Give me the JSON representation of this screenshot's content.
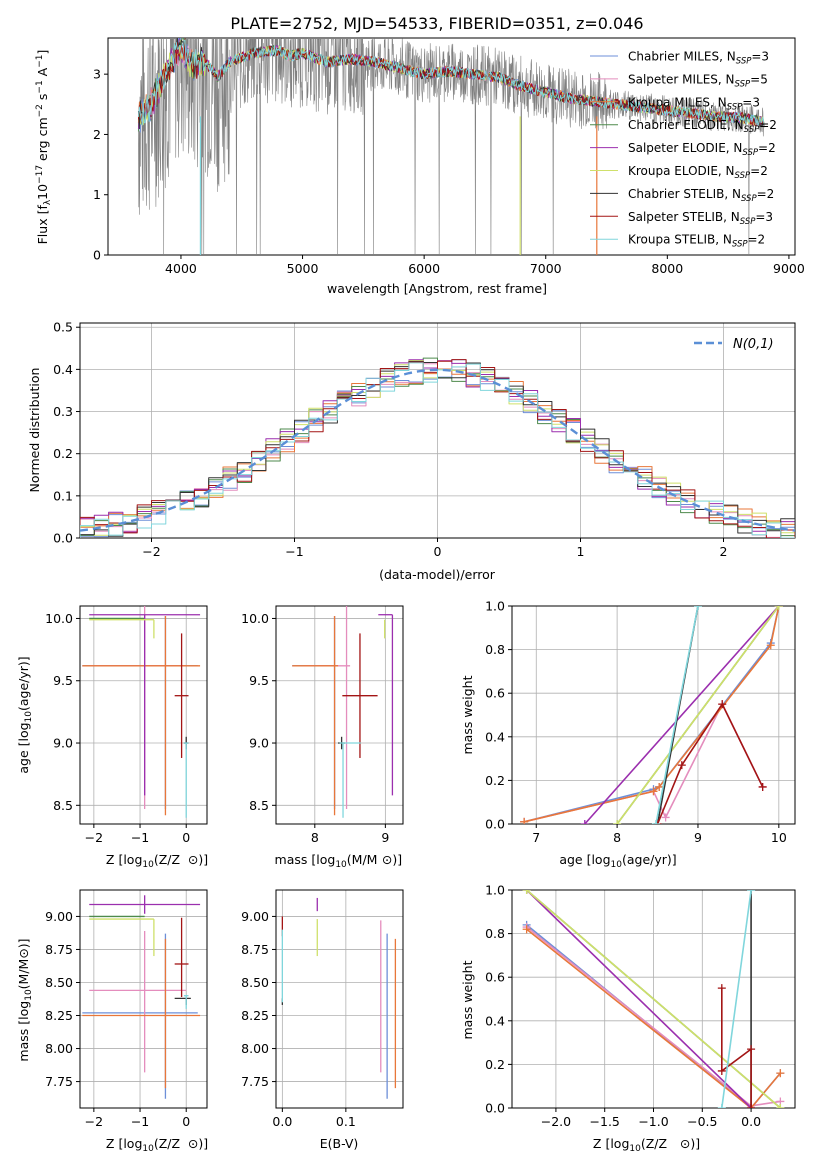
{
  "figure": {
    "title": "PLATE=2752, MJD=54533, FIBERID=0351, z=0.046"
  },
  "colors": {
    "chabrier_miles": "#6d8fd8",
    "salpeter_miles": "#e48dbd",
    "kroupa_miles": "#e8773a",
    "chabrier_elodie": "#4e8a4c",
    "salpeter_elodie": "#9b2fae",
    "kroupa_elodie": "#cfe06a",
    "chabrier_stelib": "#333333",
    "salpeter_stelib": "#a31515",
    "kroupa_stelib": "#80d6dc",
    "data": "#808080",
    "normal": "#5b8fd6"
  },
  "chart_data": [
    {
      "id": "spectrum",
      "type": "line",
      "xlabel": "wavelength [Angstrom, rest frame]",
      "ylabel": "Flux [f",
      "ylim": [
        0,
        3.6
      ],
      "xlim": [
        3400,
        9050
      ],
      "xticks": [
        4000,
        5000,
        6000,
        7000,
        8000,
        9000
      ],
      "yticks": [
        0,
        1,
        2,
        3
      ],
      "legend_placement": "right",
      "series": [
        {
          "name": "Chabrier MILES, N",
          "nssp": "=3",
          "key": "chabrier_miles"
        },
        {
          "name": "Salpeter MILES, N",
          "nssp": "=5",
          "key": "salpeter_miles"
        },
        {
          "name": "Kroupa MILES, N",
          "nssp": "=3",
          "key": "kroupa_miles"
        },
        {
          "name": "Chabrier ELODIE, N",
          "nssp": "=2",
          "key": "chabrier_elodie"
        },
        {
          "name": "Salpeter ELODIE, N",
          "nssp": "=2",
          "key": "salpeter_elodie"
        },
        {
          "name": "Kroupa ELODIE, N",
          "nssp": "=2",
          "key": "kroupa_elodie"
        },
        {
          "name": "Chabrier STELIB, N",
          "nssp": "=2",
          "key": "chabrier_stelib"
        },
        {
          "name": "Salpeter STELIB, N",
          "nssp": "=3",
          "key": "salpeter_stelib"
        },
        {
          "name": "Kroupa STELIB, N",
          "nssp": "=2",
          "key": "kroupa_stelib"
        }
      ],
      "model_continuum": [
        [
          3650,
          2.25
        ],
        [
          3750,
          2.5
        ],
        [
          3850,
          2.9
        ],
        [
          3950,
          3.3
        ],
        [
          4000,
          3.45
        ],
        [
          4100,
          3.15
        ],
        [
          4200,
          3.2
        ],
        [
          4300,
          2.95
        ],
        [
          4400,
          3.2
        ],
        [
          4600,
          3.35
        ],
        [
          4800,
          3.4
        ],
        [
          4900,
          3.3
        ],
        [
          5000,
          3.35
        ],
        [
          5200,
          3.2
        ],
        [
          5400,
          3.25
        ],
        [
          5600,
          3.2
        ],
        [
          5800,
          3.1
        ],
        [
          6000,
          3.0
        ],
        [
          6200,
          3.05
        ],
        [
          6400,
          3.0
        ],
        [
          6600,
          2.95
        ],
        [
          6800,
          2.8
        ],
        [
          7000,
          2.7
        ],
        [
          7200,
          2.6
        ],
        [
          7400,
          2.55
        ],
        [
          7600,
          2.5
        ],
        [
          7800,
          2.45
        ],
        [
          8000,
          2.4
        ],
        [
          8200,
          2.35
        ],
        [
          8400,
          2.3
        ],
        [
          8600,
          2.28
        ],
        [
          8800,
          2.2
        ]
      ]
    },
    {
      "id": "residuals",
      "type": "line",
      "xlabel": "(data-model)/error",
      "ylabel": "Normed distribution",
      "xlim": [
        -2.5,
        2.5
      ],
      "ylim": [
        0,
        0.51
      ],
      "xticks": [
        -2,
        -1,
        0,
        1,
        2
      ],
      "yticks": [
        0.0,
        0.1,
        0.2,
        0.3,
        0.4,
        0.5
      ],
      "legend": "N(0,1)",
      "legend_placement": "top-right",
      "bin_width": 0.1,
      "grid": true
    },
    {
      "id": "age_vs_Z",
      "type": "scatter",
      "xlabel": "Z [log",
      "ylabel": "age  [log",
      "xlim": [
        -2.3,
        0.45
      ],
      "ylim": [
        8.35,
        10.1
      ],
      "xticks": [
        -2,
        -1,
        0
      ],
      "yticks": [
        8.5,
        9.0,
        9.5,
        10.0
      ],
      "points": [
        {
          "key": "chabrier_miles",
          "x": -0.45,
          "xerr": [
            1.8,
            0.7
          ],
          "y": 9.62,
          "yerr": [
            1.15,
            0.4
          ]
        },
        {
          "key": "salpeter_miles",
          "x": -0.9,
          "xerr": [
            1.2,
            0.9
          ],
          "y": 9.62,
          "yerr": [
            1.15,
            0.5
          ]
        },
        {
          "key": "kroupa_miles",
          "x": -0.45,
          "xerr": [
            1.8,
            0.75
          ],
          "y": 9.62,
          "yerr": [
            1.2,
            0.4
          ]
        },
        {
          "key": "chabrier_elodie",
          "x": -0.9,
          "xerr": [
            1.2,
            0.0
          ],
          "y": 10.0,
          "yerr": [
            0.0,
            0.0
          ]
        },
        {
          "key": "salpeter_elodie",
          "x": -0.9,
          "xerr": [
            1.2,
            1.2
          ],
          "y": 10.03,
          "yerr": [
            1.45,
            0.0
          ]
        },
        {
          "key": "kroupa_elodie",
          "x": -0.7,
          "xerr": [
            1.4,
            0.0
          ],
          "y": 9.99,
          "yerr": [
            0.15,
            0.0
          ]
        },
        {
          "key": "chabrier_stelib",
          "x": 0.0,
          "xerr": [
            0.05,
            0.05
          ],
          "y": 9.0,
          "yerr": [
            0.05,
            0.05
          ]
        },
        {
          "key": "salpeter_stelib",
          "x": -0.1,
          "xerr": [
            0.15,
            0.15
          ],
          "y": 9.38,
          "yerr": [
            0.5,
            0.5
          ]
        },
        {
          "key": "kroupa_stelib",
          "x": 0.0,
          "xerr": [
            0.05,
            0.05
          ],
          "y": 9.0,
          "yerr": [
            0.6,
            0.0
          ]
        }
      ]
    },
    {
      "id": "age_vs_mass",
      "type": "scatter",
      "xlabel": "mass [log",
      "ylabel": "",
      "xlim": [
        7.45,
        9.25
      ],
      "ylim": [
        8.35,
        10.1
      ],
      "xticks": [
        8,
        9
      ],
      "yticks": [
        8.5,
        9.0,
        9.5,
        10.0
      ],
      "points": [
        {
          "key": "chabrier_miles",
          "x": 8.28,
          "xerr": [
            0.6,
            0.05
          ],
          "y": 9.62,
          "yerr": [
            1.15,
            0.4
          ]
        },
        {
          "key": "salpeter_miles",
          "x": 8.45,
          "xerr": [
            0.6,
            0.05
          ],
          "y": 9.62,
          "yerr": [
            1.15,
            0.5
          ]
        },
        {
          "key": "kroupa_miles",
          "x": 8.28,
          "xerr": [
            0.6,
            0.05
          ],
          "y": 9.62,
          "yerr": [
            1.2,
            0.4
          ]
        },
        {
          "key": "chabrier_elodie",
          "x": 9.0,
          "xerr": [
            0.0,
            0.0
          ],
          "y": 10.0,
          "yerr": [
            0.0,
            0.0
          ]
        },
        {
          "key": "salpeter_elodie",
          "x": 9.1,
          "xerr": [
            0.2,
            0.0
          ],
          "y": 10.03,
          "yerr": [
            1.45,
            0.0
          ]
        },
        {
          "key": "kroupa_elodie",
          "x": 8.99,
          "xerr": [
            0.0,
            0.0
          ],
          "y": 9.99,
          "yerr": [
            0.15,
            0.0
          ]
        },
        {
          "key": "chabrier_stelib",
          "x": 8.38,
          "xerr": [
            0.05,
            0.05
          ],
          "y": 9.0,
          "yerr": [
            0.05,
            0.05
          ]
        },
        {
          "key": "salpeter_stelib",
          "x": 8.64,
          "xerr": [
            0.25,
            0.25
          ],
          "y": 9.38,
          "yerr": [
            0.5,
            0.5
          ]
        },
        {
          "key": "kroupa_stelib",
          "x": 8.4,
          "xerr": [
            0.05,
            0.25
          ],
          "y": 9.0,
          "yerr": [
            0.6,
            0.0
          ]
        }
      ]
    },
    {
      "id": "massweight_vs_age",
      "type": "line",
      "xlabel": "age  [log",
      "ylabel": "mass weight",
      "xlim": [
        6.7,
        10.2
      ],
      "ylim": [
        0,
        1
      ],
      "xticks": [
        7,
        8,
        9,
        10
      ],
      "yticks": [
        0.0,
        0.2,
        0.4,
        0.6,
        0.8,
        1.0
      ],
      "series": [
        {
          "key": "chabrier_miles",
          "x": [
            6.85,
            8.45,
            8.52,
            9.9,
            10.0
          ],
          "y": [
            0.01,
            0.16,
            0.17,
            0.83,
            1.0
          ]
        },
        {
          "key": "salpeter_miles",
          "x": [
            6.85,
            8.45,
            8.6,
            9.3,
            9.8
          ],
          "y": [
            0.01,
            0.15,
            0.03,
            0.55,
            0.17
          ]
        },
        {
          "key": "kroupa_miles",
          "x": [
            6.85,
            8.45,
            8.52,
            9.9,
            10.0
          ],
          "y": [
            0.01,
            0.15,
            0.17,
            0.82,
            1.0
          ]
        },
        {
          "key": "chabrier_elodie",
          "x": [
            8.0,
            10.0
          ],
          "y": [
            0.0,
            1.0
          ]
        },
        {
          "key": "salpeter_elodie",
          "x": [
            7.6,
            10.0
          ],
          "y": [
            0.0,
            1.0
          ]
        },
        {
          "key": "kroupa_elodie",
          "x": [
            8.0,
            10.0
          ],
          "y": [
            0.0,
            1.0
          ]
        },
        {
          "key": "chabrier_stelib",
          "x": [
            8.5,
            9.0
          ],
          "y": [
            0.0,
            1.0
          ]
        },
        {
          "key": "salpeter_stelib",
          "x": [
            8.5,
            8.8,
            9.3,
            9.8
          ],
          "y": [
            0.0,
            0.27,
            0.55,
            0.17
          ]
        },
        {
          "key": "kroupa_stelib",
          "x": [
            8.48,
            9.0
          ],
          "y": [
            0.0,
            1.0
          ]
        }
      ]
    },
    {
      "id": "mass_vs_Z",
      "type": "scatter",
      "xlabel": "Z [log",
      "ylabel": "mass [log",
      "xlim": [
        -2.3,
        0.45
      ],
      "ylim": [
        7.55,
        9.2
      ],
      "xticks": [
        -2,
        -1,
        0
      ],
      "yticks": [
        7.75,
        8.0,
        8.25,
        8.5,
        8.75,
        9.0
      ],
      "points": [
        {
          "key": "chabrier_miles",
          "x": -0.45,
          "xerr": [
            1.8,
            0.7
          ],
          "y": 8.27,
          "yerr": [
            0.65,
            0.6
          ]
        },
        {
          "key": "salpeter_miles",
          "x": -0.9,
          "xerr": [
            1.2,
            0.9
          ],
          "y": 8.44,
          "yerr": [
            0.62,
            0.45
          ]
        },
        {
          "key": "kroupa_miles",
          "x": -0.45,
          "xerr": [
            1.8,
            0.75
          ],
          "y": 8.25,
          "yerr": [
            0.55,
            0.58
          ]
        },
        {
          "key": "chabrier_elodie",
          "x": -0.9,
          "xerr": [
            1.2,
            0.0
          ],
          "y": 9.0,
          "yerr": [
            0.0,
            0.0
          ]
        },
        {
          "key": "salpeter_elodie",
          "x": -0.9,
          "xerr": [
            1.2,
            1.2
          ],
          "y": 9.09,
          "yerr": [
            0.07,
            0.07
          ]
        },
        {
          "key": "kroupa_elodie",
          "x": -0.7,
          "xerr": [
            1.4,
            0.0
          ],
          "y": 8.98,
          "yerr": [
            0.28,
            0.0
          ]
        },
        {
          "key": "chabrier_stelib",
          "x": 0.0,
          "xerr": [
            0.25,
            0.1
          ],
          "y": 8.38,
          "yerr": [
            0.05,
            0.0
          ]
        },
        {
          "key": "salpeter_stelib",
          "x": -0.1,
          "xerr": [
            0.15,
            0.15
          ],
          "y": 8.64,
          "yerr": [
            0.25,
            0.35
          ]
        },
        {
          "key": "kroupa_stelib",
          "x": 0.0,
          "xerr": [
            0.05,
            0.05
          ],
          "y": 8.4,
          "yerr": [
            0.1,
            0.0
          ]
        }
      ]
    },
    {
      "id": "mass_vs_ebv",
      "type": "scatter",
      "xlabel": "E(B-V)",
      "ylabel": "",
      "xlim": [
        -0.01,
        0.19
      ],
      "ylim": [
        7.55,
        9.2
      ],
      "xticks": [
        0.0,
        0.1
      ],
      "yticks": [
        7.75,
        8.0,
        8.25,
        8.5,
        8.75,
        9.0
      ],
      "points": [
        {
          "key": "chabrier_miles",
          "x": 0.165,
          "y": 8.27,
          "yerr": [
            0.65,
            0.6
          ]
        },
        {
          "key": "salpeter_miles",
          "x": 0.155,
          "y": 8.44,
          "yerr": [
            0.62,
            0.53
          ]
        },
        {
          "key": "kroupa_miles",
          "x": 0.178,
          "y": 8.25,
          "yerr": [
            0.55,
            0.58
          ]
        },
        {
          "key": "chabrier_elodie",
          "x": 0.055,
          "y": 9.0,
          "yerr": [
            0.0,
            0.0
          ]
        },
        {
          "key": "salpeter_elodie",
          "x": 0.055,
          "y": 9.09,
          "yerr": [
            0.05,
            0.05
          ]
        },
        {
          "key": "kroupa_elodie",
          "x": 0.055,
          "y": 8.98,
          "yerr": [
            0.28,
            0.0
          ]
        },
        {
          "key": "chabrier_stelib",
          "x": 0.0,
          "y": 8.38,
          "yerr": [
            0.05,
            0.0
          ]
        },
        {
          "key": "salpeter_stelib",
          "x": 0.0,
          "y": 8.9,
          "yerr": [
            0.05,
            0.1
          ]
        },
        {
          "key": "kroupa_stelib",
          "x": 0.0,
          "y": 8.6,
          "yerr": [
            0.25,
            0.3
          ]
        }
      ]
    },
    {
      "id": "massweight_vs_Z",
      "type": "line",
      "xlabel": "Z [log",
      "ylabel": "mass weight",
      "xlim": [
        -2.45,
        0.45
      ],
      "ylim": [
        0,
        1
      ],
      "xticks": [
        -2.0,
        -1.5,
        -1.0,
        -0.5,
        0.0
      ],
      "yticks": [
        0.0,
        0.2,
        0.4,
        0.6,
        0.8,
        1.0
      ],
      "series": [
        {
          "key": "chabrier_miles",
          "x": [
            -2.3,
            0.0,
            0.3
          ],
          "y": [
            0.84,
            0.0,
            0.16
          ]
        },
        {
          "key": "salpeter_miles",
          "x": [
            -2.3,
            0.0,
            0.3
          ],
          "y": [
            0.83,
            0.01,
            0.03
          ]
        },
        {
          "key": "kroupa_miles",
          "x": [
            -2.3,
            0.0,
            0.3
          ],
          "y": [
            0.82,
            0.0,
            0.16
          ]
        },
        {
          "key": "chabrier_elodie",
          "x": [
            -2.3,
            0.3
          ],
          "y": [
            1.0,
            0.0
          ]
        },
        {
          "key": "salpeter_elodie",
          "x": [
            -2.3,
            0.0
          ],
          "y": [
            1.0,
            0.0
          ]
        },
        {
          "key": "kroupa_elodie",
          "x": [
            -2.3,
            0.3
          ],
          "y": [
            1.0,
            0.0
          ]
        },
        {
          "key": "chabrier_stelib",
          "x": [
            0.0,
            0.0
          ],
          "y": [
            1.0,
            0.0
          ]
        },
        {
          "key": "salpeter_stelib",
          "x": [
            -0.3,
            -0.3,
            0.0,
            0.0
          ],
          "y": [
            0.55,
            0.17,
            0.27,
            0.0
          ]
        },
        {
          "key": "kroupa_stelib",
          "x": [
            -0.3,
            0.0
          ],
          "y": [
            0.0,
            1.0
          ]
        }
      ]
    }
  ]
}
